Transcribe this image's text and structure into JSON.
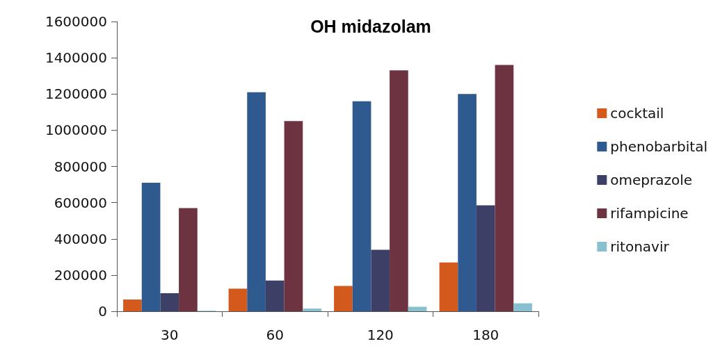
{
  "chart_data": {
    "type": "bar",
    "title": "OH midazolam",
    "categories": [
      "30",
      "60",
      "120",
      "180"
    ],
    "series": [
      {
        "name": "cocktail",
        "color": "#d35a1c",
        "values": [
          65000,
          125000,
          140000,
          270000
        ]
      },
      {
        "name": "phenobarbital",
        "color": "#2f5a8f",
        "values": [
          710000,
          1210000,
          1160000,
          1200000
        ]
      },
      {
        "name": "omeprazole",
        "color": "#3c3f66",
        "values": [
          100000,
          170000,
          340000,
          585000
        ]
      },
      {
        "name": "rifampicine",
        "color": "#6d3340",
        "values": [
          570000,
          1050000,
          1330000,
          1360000
        ]
      },
      {
        "name": "ritonavir",
        "color": "#88c0d0",
        "values": [
          3000,
          15000,
          25000,
          44000
        ]
      }
    ],
    "ylim": [
      0,
      1600000
    ],
    "yticks": [
      0,
      200000,
      400000,
      600000,
      800000,
      1000000,
      1200000,
      1400000,
      1600000
    ],
    "grid": false,
    "legend": "right"
  }
}
